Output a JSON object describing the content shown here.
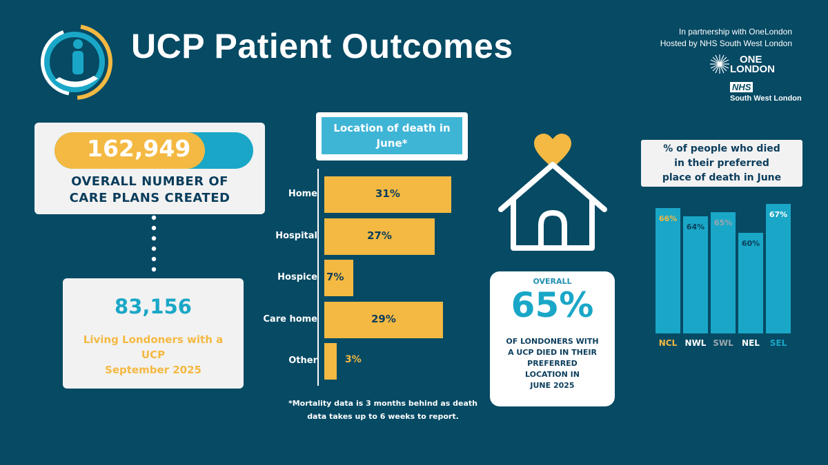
{
  "header": {
    "title": "UCP Patient Outcomes",
    "partnership": "In partnership with OneLondon",
    "hosted": "Hosted by NHS South West London",
    "onelondon_line1": "ONE",
    "onelondon_line2": "LONDON",
    "nhs_badge": "NHS",
    "nhs_org": "South West London"
  },
  "care_plans": {
    "value": "162,949",
    "label_line1": "OVERALL NUMBER OF",
    "label_line2": "CARE PLANS CREATED"
  },
  "living": {
    "value": "83,156",
    "label_line1": "Living Londoners with a",
    "label_line2": "UCP",
    "label_line3": "September 2025"
  },
  "overall": {
    "top": "OVERALL",
    "value": "65%",
    "line1": "OF LONDONERS WITH",
    "line2": "A UCP DIED IN THEIR",
    "line3": "PREFERRED",
    "line4": "LOCATION IN",
    "line5": "JUNE 2025"
  },
  "footnote": {
    "line1": "*Mortality data is 3 months behind as death",
    "line2": "data takes up to 6 weeks to report."
  },
  "colors": {
    "background": "#064a64",
    "yellow": "#f4b942",
    "cyan": "#1aa7c7",
    "navy": "#0b3d5c",
    "grey_label": "#9aa6ad"
  },
  "chart_data": [
    {
      "type": "bar",
      "orientation": "horizontal",
      "title": "Location of death in June*",
      "categories": [
        "Home",
        "Hospital",
        "Hospice",
        "Care home",
        "Other"
      ],
      "values": [
        31,
        27,
        7,
        29,
        3
      ],
      "value_labels": [
        "31%",
        "27%",
        "7%",
        "29%",
        "3%"
      ],
      "unit": "%",
      "xlim": [
        0,
        35
      ]
    },
    {
      "type": "bar",
      "orientation": "vertical",
      "title": "% of people who died in their preferred place of death in June",
      "title_line1": "%  of people who died",
      "title_line2": "in their preferred",
      "title_line3": "place of death in June",
      "categories": [
        "NCL",
        "NWL",
        "SWL",
        "NEL",
        "SEL"
      ],
      "values": [
        66,
        64,
        65,
        60,
        67
      ],
      "value_labels": [
        "66%",
        "64%",
        "65%",
        "60%",
        "67%"
      ],
      "label_colors": [
        "#f4b942",
        "#ffffff",
        "#9aa6ad",
        "#ffffff",
        "#1aa7c7"
      ],
      "value_colors": [
        "#f4b942",
        "#0b3d5c",
        "#9aa6ad",
        "#0b3d5c",
        "#ffffff"
      ],
      "ylim": [
        0,
        67
      ]
    }
  ]
}
